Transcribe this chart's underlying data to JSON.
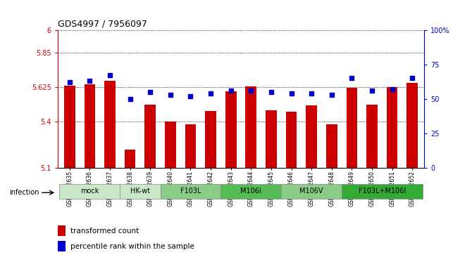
{
  "title": "GDS4997 / 7956097",
  "samples": [
    "GSM1172635",
    "GSM1172636",
    "GSM1172637",
    "GSM1172638",
    "GSM1172639",
    "GSM1172640",
    "GSM1172641",
    "GSM1172642",
    "GSM1172643",
    "GSM1172644",
    "GSM1172645",
    "GSM1172646",
    "GSM1172647",
    "GSM1172648",
    "GSM1172649",
    "GSM1172650",
    "GSM1172651",
    "GSM1172652"
  ],
  "bar_values": [
    5.635,
    5.645,
    5.67,
    5.22,
    5.51,
    5.4,
    5.385,
    5.47,
    5.6,
    5.63,
    5.475,
    5.465,
    5.505,
    5.385,
    5.62,
    5.51,
    5.625,
    5.655
  ],
  "dot_values": [
    62,
    63,
    67,
    50,
    55,
    53,
    52,
    54,
    56,
    56,
    55,
    54,
    54,
    53,
    65,
    56,
    57,
    65
  ],
  "ylim": [
    5.1,
    6.0
  ],
  "yticks": [
    5.1,
    5.4,
    5.625,
    5.85,
    6.0
  ],
  "ytick_labels": [
    "5.1",
    "5.4",
    "5.625",
    "5.85",
    "6"
  ],
  "y2lim": [
    0,
    100
  ],
  "y2ticks": [
    0,
    25,
    50,
    75,
    100
  ],
  "y2tick_labels": [
    "0",
    "25",
    "50",
    "75",
    "100%"
  ],
  "bar_color": "#cc0000",
  "dot_color": "#0000cc",
  "left_tick_color": "#cc0000",
  "right_tick_color": "#0000cc",
  "grid_lines": [
    5.4,
    5.625,
    5.85,
    6.0
  ],
  "infection_groups": [
    {
      "label": "mock",
      "start": 0,
      "end": 3,
      "color": "#c8e8c8"
    },
    {
      "label": "HK-wt",
      "start": 3,
      "end": 5,
      "color": "#c8e8c8"
    },
    {
      "label": "F103L",
      "start": 5,
      "end": 8,
      "color": "#88cc88"
    },
    {
      "label": "M106I",
      "start": 8,
      "end": 11,
      "color": "#55bb55"
    },
    {
      "label": "M106V",
      "start": 11,
      "end": 14,
      "color": "#88cc88"
    },
    {
      "label": "F103L+M106I",
      "start": 14,
      "end": 18,
      "color": "#33aa33"
    }
  ],
  "legend_bar_label": "transformed count",
  "legend_dot_label": "percentile rank within the sample",
  "xlabel_infection": "infection"
}
